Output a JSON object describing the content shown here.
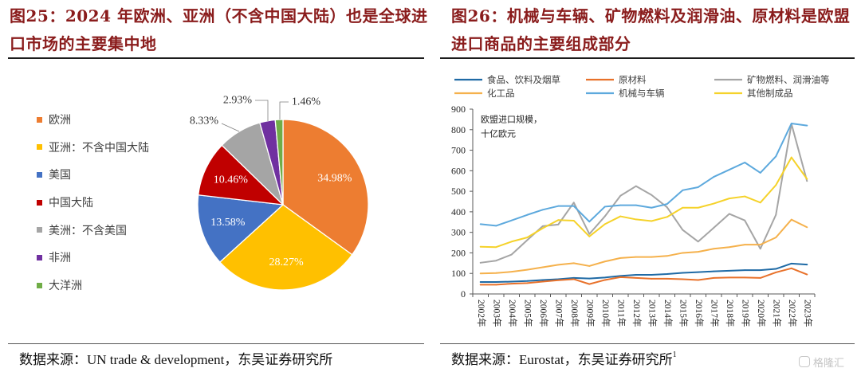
{
  "left_panel": {
    "title_lines": [
      "图25：2024 年欧洲、亚洲（不含中国大陆）也是全球进",
      "口市场的主要集中地"
    ],
    "source": "数据来源：UN trade & development，东吴证券研究所"
  },
  "right_panel": {
    "title_lines": [
      "图26：机械与车辆、矿物燃料及润滑油、原材料是欧盟",
      "进口商品的主要组成部分"
    ],
    "source": "数据来源：Eurostat，东吴证券研究所",
    "source_note": "1"
  },
  "watermark": "格隆汇",
  "chart_data": [
    {
      "type": "pie",
      "categories": [
        "欧洲",
        "亚洲：不含中国大陆",
        "美国",
        "中国大陆",
        "美洲：不含美国",
        "非洲",
        "大洋洲"
      ],
      "values": [
        34.98,
        28.27,
        13.58,
        10.46,
        8.33,
        2.93,
        1.46
      ],
      "unit": "%",
      "colors": [
        "#ED7D31",
        "#FFC000",
        "#4472C4",
        "#C00000",
        "#A5A5A5",
        "#7030A0",
        "#70AD47"
      ],
      "legend_position": "left"
    },
    {
      "type": "line",
      "x": [
        "2002年",
        "2003年",
        "2004年",
        "2005年",
        "2006年",
        "2007年",
        "2008年",
        "2009年",
        "2010年",
        "2011年",
        "2012年",
        "2013年",
        "2014年",
        "2015年",
        "2016年",
        "2017年",
        "2018年",
        "2019年",
        "2020年",
        "2021年",
        "2022年",
        "2023年"
      ],
      "series": [
        {
          "name": "食品、饮料及烟草",
          "color": "#1F6AA5",
          "values": [
            58,
            58,
            60,
            63,
            68,
            72,
            78,
            75,
            80,
            88,
            93,
            93,
            97,
            103,
            106,
            110,
            113,
            116,
            116,
            122,
            148,
            143
          ]
        },
        {
          "name": "原材料",
          "color": "#E8712A",
          "values": [
            45,
            45,
            50,
            53,
            60,
            67,
            72,
            48,
            68,
            82,
            78,
            74,
            74,
            72,
            68,
            78,
            80,
            80,
            78,
            105,
            125,
            95
          ]
        },
        {
          "name": "矿物燃料、润滑油等",
          "color": "#A5A5A5",
          "values": [
            152,
            162,
            192,
            262,
            330,
            338,
            445,
            292,
            378,
            478,
            525,
            482,
            422,
            312,
            255,
            322,
            390,
            358,
            220,
            385,
            828,
            550
          ]
        },
        {
          "name": "化工品",
          "color": "#F5B14C",
          "values": [
            100,
            102,
            108,
            118,
            130,
            142,
            150,
            136,
            158,
            175,
            180,
            180,
            185,
            200,
            205,
            220,
            228,
            240,
            240,
            275,
            362,
            325
          ]
        },
        {
          "name": "机械与车辆",
          "color": "#5DA9DD",
          "values": [
            340,
            332,
            358,
            385,
            410,
            428,
            428,
            352,
            425,
            432,
            432,
            420,
            438,
            505,
            520,
            570,
            605,
            640,
            590,
            670,
            830,
            820
          ]
        },
        {
          "name": "其他制成品",
          "color": "#F5D22A",
          "values": [
            230,
            228,
            255,
            275,
            320,
            360,
            357,
            280,
            340,
            378,
            363,
            355,
            375,
            420,
            420,
            440,
            465,
            475,
            445,
            530,
            665,
            560
          ]
        }
      ],
      "annotation": [
        "欧盟进口规模，",
        "十亿欧元"
      ],
      "ylim": [
        0,
        900
      ],
      "yticks": [
        0,
        100,
        200,
        300,
        400,
        500,
        600,
        700,
        800,
        900
      ],
      "grid": false,
      "legend_position": "top"
    }
  ]
}
